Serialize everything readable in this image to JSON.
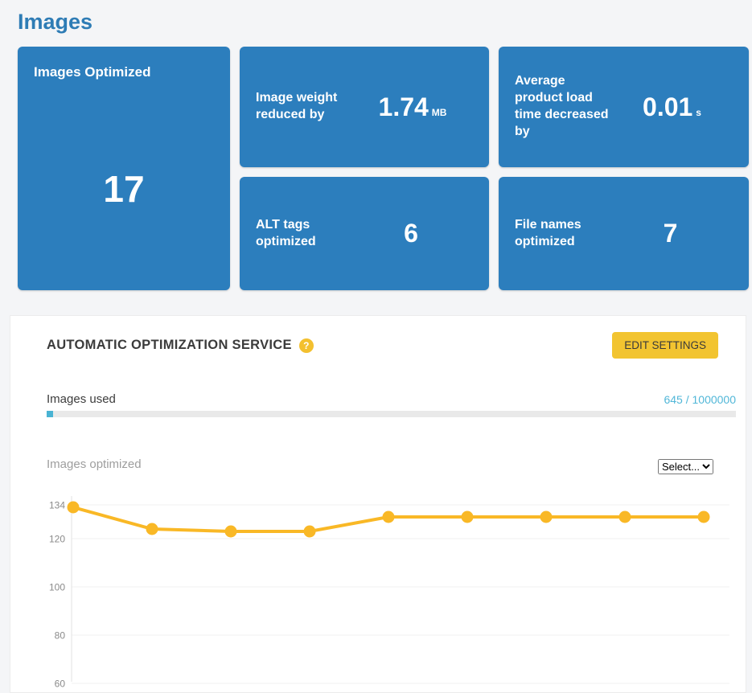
{
  "page": {
    "title": "Images"
  },
  "colors": {
    "background": "#f4f5f7",
    "heading_blue": "#2e7cb5",
    "card_blue": "#2c7ebd",
    "panel_white": "#ffffff",
    "accent_yellow": "#f2c430",
    "chart_line_yellow": "#f9b826",
    "usage_value_blue": "#51b7d8",
    "progress_fill_blue": "#4ab3d3"
  },
  "stats": {
    "main": {
      "label": "Images Optimized",
      "value": "17"
    },
    "cards": [
      {
        "label": "Image weight reduced by",
        "value": "1.74",
        "unit": "MB"
      },
      {
        "label": "Average product load time decreased by",
        "value": "0.01",
        "unit": "s"
      },
      {
        "label": "ALT tags optimized",
        "value": "6",
        "unit": ""
      },
      {
        "label": "File names optimized",
        "value": "7",
        "unit": ""
      }
    ]
  },
  "service_panel": {
    "title": "AUTOMATIC OPTIMIZATION SERVICE",
    "help_icon_glyph": "?",
    "edit_button": "EDIT SETTINGS",
    "usage": {
      "label": "Images used",
      "used": 645,
      "total": 1000000,
      "display": "645 / 1000000"
    },
    "chart_section": {
      "label": "Images optimized",
      "select_value": "Select..."
    }
  },
  "chart_data": {
    "type": "line",
    "title": "Images optimized",
    "values": [
      133,
      124,
      123,
      123,
      129,
      129,
      129,
      129,
      129
    ],
    "yticks": [
      134,
      120,
      100,
      80,
      60
    ],
    "ylim": [
      60,
      134
    ],
    "ylim_top": 134,
    "x_labels_visible": false,
    "grid": true,
    "legend": "none",
    "line_color": "#f9b826"
  }
}
